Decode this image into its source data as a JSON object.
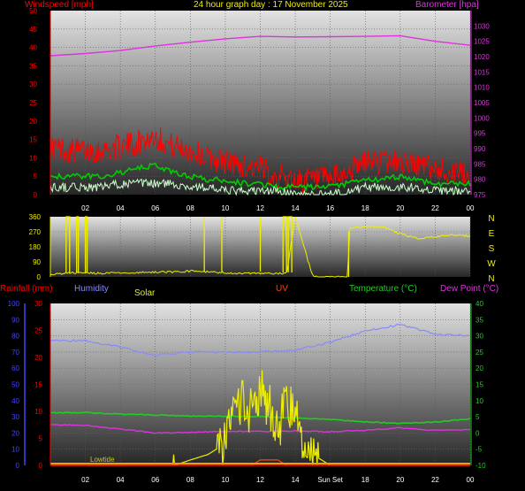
{
  "header": {
    "left": "Windspeed [mph]",
    "title": "24 hour graph day : 17 November 2025",
    "right": "Barometer [hpa]"
  },
  "colors": {
    "wind_gust": "#ff0000",
    "wind_avg": "#00cc00",
    "wind_low": "#ccffcc",
    "barometer": "#dd33dd",
    "direction": "#eeee00",
    "humidity": "#8888ff",
    "temperature": "#22cc22",
    "dew_point": "#dd33dd",
    "rainfall": "#ff0000",
    "solar": "#eeee00",
    "uv": "#ff4400",
    "tide": "#ff9900",
    "axis_left_bottom": "#4444ff"
  },
  "chart_data": [
    {
      "type": "line",
      "title": "",
      "x_ticks": [
        "02",
        "04",
        "06",
        "08",
        "10",
        "12",
        "14",
        "16",
        "18",
        "20",
        "22",
        "00"
      ],
      "y_left": {
        "label": "Windspeed [mph]",
        "range": [
          0,
          50
        ],
        "ticks": [
          "0",
          "5",
          "10",
          "15",
          "20",
          "25",
          "30",
          "35",
          "40",
          "45",
          "50"
        ]
      },
      "y_right": {
        "label": "Barometer [hpa]",
        "range": [
          975,
          1035
        ],
        "ticks": [
          "975",
          "980",
          "985",
          "990",
          "995",
          "1000",
          "1005",
          "1010",
          "1015",
          "1020",
          "1025",
          "1030"
        ]
      },
      "series": [
        {
          "name": "Windspeed",
          "role": "gust",
          "color": "#ff0000",
          "x": [
            0,
            1,
            2,
            3,
            4,
            5,
            6,
            7,
            8,
            9,
            10,
            11,
            12,
            13,
            14,
            15,
            16,
            17,
            18,
            19,
            20,
            21,
            22,
            23,
            24
          ],
          "values": [
            13,
            12,
            12,
            12,
            13,
            14,
            16,
            13,
            12,
            10,
            9,
            8,
            7,
            5,
            4,
            4,
            4,
            6,
            9,
            9,
            9,
            8,
            7,
            6,
            5
          ]
        },
        {
          "name": "Average",
          "role": "avg",
          "color": "#00cc00",
          "x": [
            0,
            1,
            2,
            3,
            4,
            5,
            6,
            7,
            8,
            9,
            10,
            11,
            12,
            13,
            14,
            15,
            16,
            17,
            18,
            19,
            20,
            21,
            22,
            23,
            24
          ],
          "values": [
            5,
            5,
            5,
            5,
            6,
            7,
            8,
            6,
            5,
            4,
            4,
            3,
            3,
            2,
            2,
            2,
            2,
            3,
            4,
            4,
            5,
            4,
            3,
            3,
            3
          ]
        },
        {
          "name": "Low",
          "role": "low",
          "color": "#ccffcc",
          "x": [
            0,
            1,
            2,
            3,
            4,
            5,
            6,
            7,
            8,
            9,
            10,
            11,
            12,
            13,
            14,
            15,
            16,
            17,
            18,
            19,
            20,
            21,
            22,
            23,
            24
          ],
          "values": [
            2,
            2,
            2,
            2,
            3,
            3,
            3,
            3,
            2,
            2,
            1,
            1,
            1,
            1,
            0,
            0,
            0,
            1,
            2,
            2,
            2,
            2,
            1,
            1,
            1
          ]
        },
        {
          "name": "Barometer",
          "axis": "right",
          "color": "#dd33dd",
          "x": [
            0,
            2,
            4,
            6,
            8,
            10,
            12,
            14,
            16,
            18,
            20,
            22,
            24
          ],
          "values": [
            1020.3,
            1021.0,
            1022.0,
            1023.5,
            1024.7,
            1025.8,
            1026.6,
            1026.4,
            1026.5,
            1026.6,
            1026.8,
            1025.0,
            1023.7
          ]
        }
      ]
    },
    {
      "type": "line",
      "title": "",
      "x_ticks": [
        "02",
        "04",
        "06",
        "08",
        "10",
        "12",
        "14",
        "16",
        "18",
        "20",
        "22",
        "00"
      ],
      "y_left": {
        "range": [
          0,
          360
        ],
        "ticks": [
          "0",
          "90",
          "180",
          "270",
          "360"
        ]
      },
      "y_right_labels": [
        "N",
        "W",
        "S",
        "E",
        "N"
      ],
      "series": [
        {
          "name": "Wind direction",
          "color": "#eeee00",
          "x": [
            0,
            0.3,
            0.6,
            1.5,
            2,
            3,
            4,
            5,
            6,
            7,
            8,
            9,
            10,
            11,
            12,
            13,
            13.5,
            14,
            15,
            16,
            17,
            17.1,
            18,
            19,
            20,
            21,
            22,
            23,
            24
          ],
          "values": [
            10,
            15,
            20,
            25,
            25,
            20,
            25,
            25,
            30,
            30,
            35,
            30,
            25,
            20,
            20,
            20,
            20,
            360,
            0,
            0,
            0,
            290,
            300,
            300,
            260,
            230,
            240,
            250,
            245
          ]
        }
      ]
    },
    {
      "type": "line",
      "title": "",
      "legend": [
        "Rainfall (mm)",
        "Humidity",
        "Solar",
        "UV",
        "Temperature (°C)",
        "Dew Point (°C)"
      ],
      "x_ticks": [
        "02",
        "04",
        "06",
        "08",
        "10",
        "12",
        "14",
        "Sun Set",
        "18",
        "20",
        "22",
        "00"
      ],
      "annotations": [
        "Lowtide",
        "Sun Set"
      ],
      "y_left_outer": {
        "label": "Humidity",
        "range": [
          0,
          100
        ],
        "ticks": [
          "0",
          "10",
          "20",
          "30",
          "40",
          "50",
          "60",
          "70",
          "80",
          "90",
          "100"
        ]
      },
      "y_left_inner": {
        "label": "Rainfall (mm)",
        "range": [
          0,
          30
        ],
        "ticks": [
          "0",
          "5",
          "10",
          "15",
          "20",
          "25",
          "30"
        ]
      },
      "y_right": {
        "label": "Temperature (°C)",
        "range": [
          -10,
          40
        ],
        "ticks": [
          "-10",
          "-5",
          "0",
          "5",
          "10",
          "15",
          "20",
          "25",
          "30",
          "35",
          "40"
        ]
      },
      "series": [
        {
          "name": "Humidity",
          "axis": "left_outer",
          "color": "#8888ff",
          "x": [
            0,
            2,
            4,
            6,
            8,
            10,
            12,
            14,
            16,
            18,
            20,
            22,
            24
          ],
          "values": [
            77,
            77,
            73,
            68,
            70,
            70,
            70,
            71,
            76,
            83,
            87,
            81,
            80
          ]
        },
        {
          "name": "Temperature (°C)",
          "axis": "right",
          "color": "#22cc22",
          "x": [
            0,
            2,
            4,
            6,
            8,
            10,
            12,
            14,
            16,
            18,
            20,
            22,
            24
          ],
          "values": [
            6.2,
            6.3,
            5.8,
            5.6,
            5.2,
            5.2,
            5.0,
            4.6,
            4.2,
            3.4,
            3.0,
            3.4,
            4.4
          ]
        },
        {
          "name": "Dew Point (°C)",
          "axis": "right",
          "color": "#dd33dd",
          "x": [
            0,
            2,
            4,
            6,
            8,
            10,
            12,
            14,
            16,
            18,
            20,
            22,
            24
          ],
          "values": [
            2.6,
            2.4,
            1.2,
            0.0,
            0.2,
            0.5,
            0.5,
            0.6,
            0.4,
            0.8,
            1.6,
            0.8,
            1.0
          ]
        },
        {
          "name": "Solar",
          "axis": "left_inner",
          "color": "#eeee00",
          "x": [
            0,
            7,
            7.05,
            7.1,
            8,
            9,
            10,
            10.5,
            11,
            11.5,
            12,
            12.5,
            13,
            13.5,
            14,
            14.5,
            15,
            15.5,
            16,
            24
          ],
          "values": [
            0,
            0,
            2,
            0,
            1,
            2,
            4,
            9,
            12,
            10,
            14,
            11,
            6,
            12,
            9,
            4,
            2,
            1,
            0,
            0
          ]
        },
        {
          "name": "UV",
          "axis": "left_inner",
          "color": "#ff4400",
          "x": [
            0,
            11.5,
            12,
            12.5,
            13,
            13.5,
            24
          ],
          "values": [
            0,
            0,
            1,
            1,
            1,
            0,
            0
          ]
        },
        {
          "name": "Rainfall (mm)",
          "axis": "left_inner",
          "color": "#ff0000",
          "x": [
            0,
            24
          ],
          "values": [
            0,
            0
          ]
        }
      ]
    }
  ]
}
